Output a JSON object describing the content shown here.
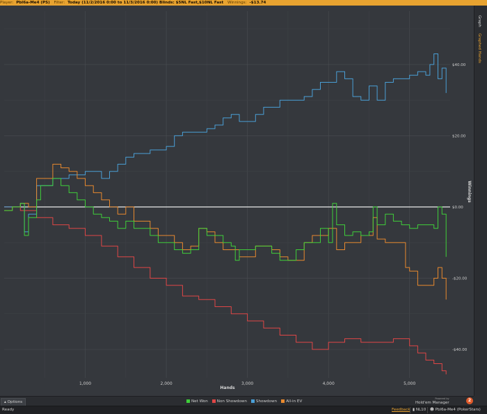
{
  "header": {
    "player_label": "Player:",
    "player_value": "Pbl6a-Me4 (PS)",
    "filter_label": "Filter:",
    "filter_value": "Today (11/2/2016 0:00 to 11/3/2016 0:00) Blinds: $5NL Fast,$10NL Fast",
    "winnings_label": "Winnings:",
    "winnings_value": "-$13.74"
  },
  "sidebar": {
    "tab_graph": "Graph",
    "tab_graphed_hands": "Graphed Hands"
  },
  "options": {
    "label": "Options"
  },
  "status": {
    "ready": "Ready",
    "feedback": "Feedback",
    "limit": "NL10",
    "player": "Pbl6a-Me4 (PokerStars)"
  },
  "logo": {
    "powered": "Powered by",
    "name": "Hold'em Manager",
    "badge": "2"
  },
  "colors": {
    "net_won": "#3fcf3a",
    "non_showdown": "#e04646",
    "showdown": "#4a9fd6",
    "allin_ev": "#e8892e",
    "zero_line": "#ffffff",
    "accent": "#e8a330"
  },
  "chart_data": {
    "type": "line",
    "xlabel": "Hands",
    "ylabel": "Winnings",
    "xlim": [
      0,
      5500
    ],
    "ylim": [
      -48,
      55
    ],
    "x_ticks": [
      1000,
      2000,
      3000,
      4000,
      5000
    ],
    "x_tick_labels": [
      "1,000",
      "2,000",
      "3,000",
      "4,000",
      "5,000"
    ],
    "y_ticks": [
      40,
      20,
      0,
      -20,
      -40
    ],
    "y_tick_labels": [
      "$40.00",
      "$20.00",
      "$0.00",
      "-$20.00",
      "-$40.00"
    ],
    "grid": true,
    "legend_position": "bottom",
    "series": [
      {
        "name": "Net Won",
        "color": "#3fcf3a",
        "x": [
          0,
          100,
          200,
          250,
          300,
          400,
          450,
          600,
          700,
          800,
          900,
          1000,
          1100,
          1200,
          1300,
          1400,
          1500,
          1600,
          1700,
          1800,
          1900,
          2000,
          2100,
          2200,
          2300,
          2400,
          2500,
          2600,
          2700,
          2800,
          2850,
          2900,
          3000,
          3100,
          3200,
          3300,
          3400,
          3500,
          3600,
          3700,
          3800,
          3900,
          4000,
          4050,
          4100,
          4200,
          4300,
          4400,
          4500,
          4550,
          4600,
          4700,
          4800,
          4900,
          5000,
          5100,
          5200,
          5300,
          5350,
          5400,
          5450
        ],
        "y": [
          -1,
          0,
          1,
          -8,
          -3,
          2,
          6,
          8,
          6,
          4,
          2,
          0,
          -2,
          -3,
          -4,
          -6,
          -4,
          -6,
          -6,
          -8,
          -10,
          -10,
          -12,
          -13,
          -12,
          -6,
          -8,
          -8,
          -10,
          -11,
          -15,
          -12,
          -12,
          -11,
          -11,
          -13,
          -15,
          -15,
          -12,
          -10,
          -10,
          -6,
          -10,
          1,
          -5,
          -8,
          -7,
          -8,
          -7,
          0,
          -5,
          -2,
          -4,
          -5,
          -6,
          -5,
          -5,
          -6,
          0,
          -2,
          -14
        ]
      },
      {
        "name": "Non Showdown",
        "color": "#e04646",
        "x": [
          0,
          200,
          400,
          600,
          800,
          1000,
          1200,
          1400,
          1600,
          1800,
          2000,
          2200,
          2400,
          2600,
          2800,
          3000,
          3200,
          3400,
          3500,
          3600,
          3800,
          4000,
          4200,
          4400,
          4600,
          4800,
          5000,
          5100,
          5200,
          5300,
          5400,
          5450
        ],
        "y": [
          0,
          -1,
          -3,
          -5,
          -6,
          -8,
          -11,
          -14,
          -17,
          -20,
          -22,
          -25,
          -26,
          -28,
          -30,
          -32,
          -34,
          -36,
          -36,
          -38,
          -40,
          -38,
          -37,
          -38,
          -38,
          -37,
          -39,
          -41,
          -43,
          -44,
          -46,
          -47
        ]
      },
      {
        "name": "Showdown",
        "color": "#4a9fd6",
        "x": [
          0,
          200,
          250,
          300,
          400,
          600,
          800,
          1000,
          1200,
          1300,
          1400,
          1500,
          1600,
          1800,
          2000,
          2100,
          2200,
          2400,
          2500,
          2600,
          2700,
          2800,
          2900,
          3000,
          3100,
          3200,
          3400,
          3600,
          3700,
          3800,
          3900,
          4000,
          4100,
          4200,
          4300,
          4400,
          4500,
          4600,
          4700,
          4800,
          4900,
          5000,
          5100,
          5200,
          5250,
          5300,
          5350,
          5400,
          5450
        ],
        "y": [
          0,
          1,
          -7,
          -2,
          6,
          8,
          9,
          10,
          8,
          10,
          12,
          14,
          15,
          16,
          17,
          20,
          21,
          21,
          22,
          23,
          25,
          26,
          24,
          24,
          26,
          28,
          30,
          30,
          31,
          33,
          35,
          35,
          38,
          36,
          31,
          30,
          34,
          30,
          35,
          36,
          36,
          37,
          38,
          37,
          40,
          43,
          36,
          39,
          32
        ]
      },
      {
        "name": "All-in EV",
        "color": "#e8892e",
        "x": [
          0,
          100,
          200,
          300,
          400,
          600,
          700,
          800,
          900,
          1000,
          1100,
          1200,
          1300,
          1400,
          1500,
          1600,
          1700,
          1800,
          1900,
          2000,
          2100,
          2200,
          2300,
          2400,
          2500,
          2600,
          2700,
          2800,
          2900,
          3000,
          3100,
          3200,
          3300,
          3400,
          3500,
          3600,
          3700,
          3800,
          3900,
          4000,
          4100,
          4200,
          4300,
          4400,
          4500,
          4550,
          4600,
          4700,
          4800,
          4900,
          4950,
          5000,
          5100,
          5200,
          5300,
          5350,
          5400,
          5450
        ],
        "y": [
          -1,
          0,
          1,
          0,
          8,
          12,
          11,
          10,
          8,
          6,
          4,
          2,
          0,
          -2,
          0,
          -4,
          -4,
          -6,
          -8,
          -8,
          -10,
          -12,
          -11,
          -6,
          -7,
          -10,
          -12,
          -12,
          -14,
          -14,
          -11,
          -11,
          -12,
          -14,
          -15,
          -15,
          -10,
          -8,
          -8,
          -6,
          -12,
          -10,
          -10,
          -8,
          -8,
          -3,
          -9,
          -10,
          -10,
          -10,
          -17,
          -18,
          -22,
          -22,
          -20,
          -17,
          -20,
          -26
        ]
      }
    ]
  }
}
